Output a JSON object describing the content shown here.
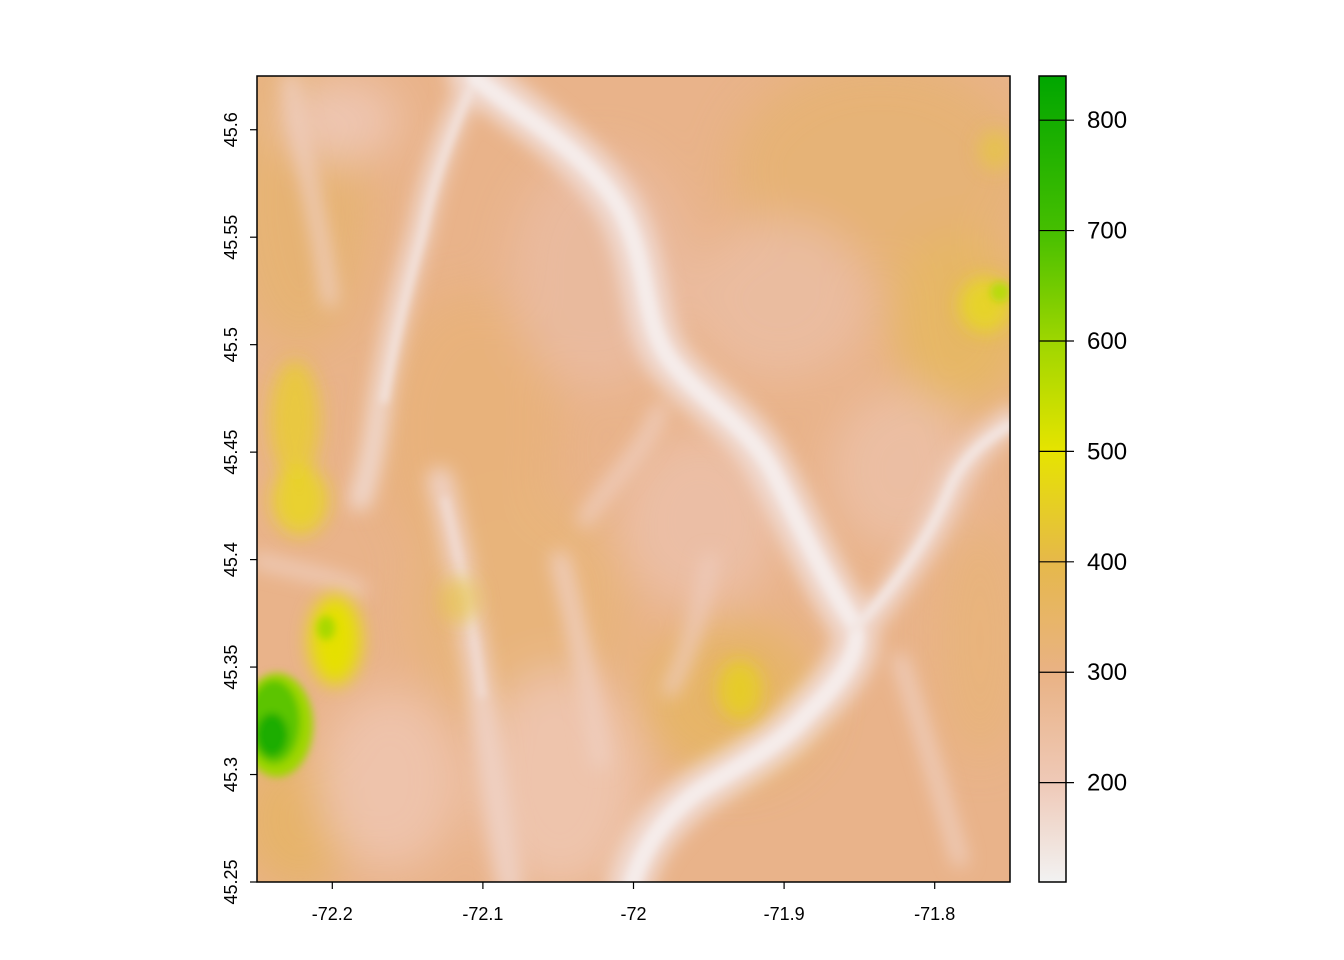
{
  "chart_data": {
    "type": "heatmap",
    "title": "",
    "xlabel": "",
    "ylabel": "",
    "xlim": [
      -72.25,
      -71.75
    ],
    "ylim": [
      45.25,
      45.625
    ],
    "x_ticks": [
      {
        "value": -72.2,
        "label": "-72.2"
      },
      {
        "value": -72.1,
        "label": "-72.1"
      },
      {
        "value": -72.0,
        "label": "-72"
      },
      {
        "value": -71.9,
        "label": "-71.9"
      },
      {
        "value": -71.8,
        "label": "-71.8"
      }
    ],
    "y_ticks": [
      {
        "value": 45.25,
        "label": "45.25"
      },
      {
        "value": 45.3,
        "label": "45.3"
      },
      {
        "value": 45.35,
        "label": "45.35"
      },
      {
        "value": 45.4,
        "label": "45.4"
      },
      {
        "value": 45.45,
        "label": "45.45"
      },
      {
        "value": 45.5,
        "label": "45.5"
      },
      {
        "value": 45.55,
        "label": "45.55"
      },
      {
        "value": 45.6,
        "label": "45.6"
      }
    ],
    "legend": {
      "placement": "right",
      "range": [
        110,
        840
      ],
      "ticks": [
        {
          "value": 200,
          "label": "200"
        },
        {
          "value": 300,
          "label": "300"
        },
        {
          "value": 400,
          "label": "400"
        },
        {
          "value": 500,
          "label": "500"
        },
        {
          "value": 600,
          "label": "600"
        },
        {
          "value": 700,
          "label": "700"
        },
        {
          "value": 800,
          "label": "800"
        }
      ],
      "color_stops": [
        {
          "value": 110,
          "color": "#f2f2f2"
        },
        {
          "value": 200,
          "color": "#efc9b7"
        },
        {
          "value": 300,
          "color": "#e9b284"
        },
        {
          "value": 400,
          "color": "#e6b84a"
        },
        {
          "value": 500,
          "color": "#e6e400"
        },
        {
          "value": 600,
          "color": "#9ed600"
        },
        {
          "value": 700,
          "color": "#45bf00"
        },
        {
          "value": 840,
          "color": "#00a600"
        }
      ]
    }
  }
}
